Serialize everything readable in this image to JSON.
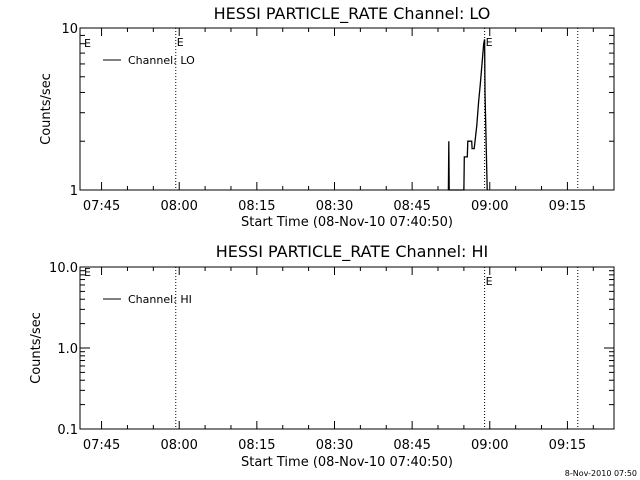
{
  "footer": {
    "timestamp": "8-Nov-2010 07:50"
  },
  "chart_data": [
    {
      "type": "line",
      "title": "HESSI PARTICLE_RATE Channel: LO",
      "xlabel": "Start Time (08-Nov-10 07:40:50)",
      "ylabel": "Counts/sec",
      "x_ticks": [
        "07:45",
        "08:00",
        "08:15",
        "08:30",
        "08:45",
        "09:00",
        "09:15"
      ],
      "xlim": [
        "07:40:50",
        "09:24:00"
      ],
      "y_ticks": [
        "1",
        "10"
      ],
      "ylim": [
        1,
        10
      ],
      "y_scale": "log",
      "grid": false,
      "legend_position": "top-left",
      "event_markers": [
        {
          "time": "07:59:20",
          "label": "E"
        },
        {
          "time": "08:59:00",
          "label": "E"
        },
        {
          "time": "09:17:00",
          "label": ""
        }
      ],
      "corner_label": "E",
      "series": [
        {
          "name": "Channel: LO",
          "color": "#000000",
          "points": [
            [
              "08:52:00",
              1
            ],
            [
              "08:52:05",
              2
            ],
            [
              "08:52:10",
              1
            ],
            [
              "08:55:00",
              1
            ],
            [
              "08:55:05",
              1.6
            ],
            [
              "08:55:40",
              1.6
            ],
            [
              "08:55:45",
              2
            ],
            [
              "08:56:30",
              2
            ],
            [
              "08:56:35",
              1.8
            ],
            [
              "08:57:00",
              1.8
            ],
            [
              "08:57:30",
              2.5
            ],
            [
              "08:57:50",
              3.5
            ],
            [
              "08:58:10",
              4.5
            ],
            [
              "08:58:30",
              6
            ],
            [
              "08:58:50",
              8
            ],
            [
              "08:59:00",
              8.5
            ],
            [
              "08:59:05",
              4
            ],
            [
              "08:59:30",
              1
            ]
          ]
        }
      ]
    },
    {
      "type": "line",
      "title": "HESSI PARTICLE_RATE Channel: HI",
      "xlabel": "Start Time (08-Nov-10 07:40:50)",
      "ylabel": "Counts/sec",
      "x_ticks": [
        "07:45",
        "08:00",
        "08:15",
        "08:30",
        "08:45",
        "09:00",
        "09:15"
      ],
      "xlim": [
        "07:40:50",
        "09:24:00"
      ],
      "y_ticks": [
        "0.1",
        "1.0",
        "10.0"
      ],
      "ylim": [
        0.1,
        10
      ],
      "y_scale": "log",
      "grid": false,
      "legend_position": "top-left",
      "event_markers": [
        {
          "time": "07:59:20",
          "label": ""
        },
        {
          "time": "08:59:00",
          "label": "E"
        },
        {
          "time": "09:17:00",
          "label": ""
        }
      ],
      "corner_label": "E",
      "series": [
        {
          "name": "Channel: HI",
          "color": "#000000",
          "points": []
        }
      ]
    }
  ]
}
